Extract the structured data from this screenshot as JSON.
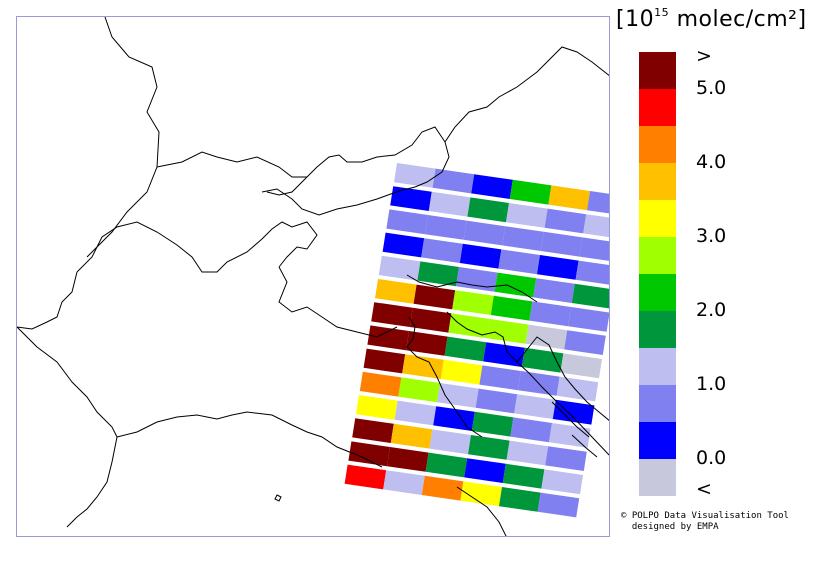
{
  "legend": {
    "unit_prefix": "[10",
    "unit_exponent": "15",
    "unit_suffix": " molec/cm²]",
    "colors": [
      "#800000",
      "#ff0000",
      "#ff8000",
      "#ffc000",
      "#ffff00",
      "#a0ff00",
      "#00c800",
      "#00963c",
      "#bebef0",
      "#8080f0",
      "#0000ff",
      "#c8c8dc"
    ],
    "labels": [
      {
        "text": ">",
        "slot": 0
      },
      {
        "text": "5.0",
        "slot": 1
      },
      {
        "text": "4.0",
        "slot": 3
      },
      {
        "text": "3.0",
        "slot": 5
      },
      {
        "text": "2.0",
        "slot": 7
      },
      {
        "text": "1.0",
        "slot": 9
      },
      {
        "text": "0.0",
        "slot": 11
      },
      {
        "text": "<",
        "slot": 12
      }
    ]
  },
  "swath": {
    "rows": [
      [
        "#bebef0",
        "#8080f0",
        "#0000ff",
        "#00c800",
        "#ffc000",
        "#8080f0"
      ],
      [
        "#0000ff",
        "#bebef0",
        "#00963c",
        "#bebef0",
        "#8080f0",
        "#bebef0"
      ],
      [
        "#8080f0",
        "#8080f0",
        "#8080f0",
        "#8080f0",
        "#8080f0",
        "#8080f0"
      ],
      [
        "#0000ff",
        "#8080f0",
        "#0000ff",
        "#8080f0",
        "#0000ff",
        "#8080f0"
      ],
      [
        "#bebef0",
        "#00963c",
        "#8080f0",
        "#00c800",
        "#8080f0",
        "#00963c"
      ],
      [
        "#ffc000",
        "#800000",
        "#a0ff00",
        "#00c800",
        "#8080f0",
        "#8080f0"
      ],
      [
        "#800000",
        "#800000",
        "#a0ff00",
        "#a0ff00",
        "#c8c8dc",
        "#8080f0"
      ],
      [
        "#800000",
        "#800000",
        "#00963c",
        "#0000ff",
        "#00963c",
        "#c8c8dc"
      ],
      [
        "#800000",
        "#ffc000",
        "#ffff00",
        "#8080f0",
        "#8080f0",
        "#bebef0"
      ],
      [
        "#ff8000",
        "#a0ff00",
        "#bebef0",
        "#8080f0",
        "#bebef0",
        "#0000ff"
      ],
      [
        "#ffff00",
        "#bebef0",
        "#0000ff",
        "#00963c",
        "#8080f0",
        "#bebef0"
      ],
      [
        "#800000",
        "#ffc000",
        "#bebef0",
        "#00963c",
        "#bebef0",
        "#8080f0"
      ],
      [
        "#800000",
        "#800000",
        "#00963c",
        "#0000ff",
        "#00963c",
        "#bebef0"
      ],
      [
        "#ff0000",
        "#bebef0",
        "#ff8000",
        "#ffff00",
        "#00963c",
        "#8080f0"
      ]
    ]
  },
  "credit": {
    "line1": "© POLPO Data Visualisation Tool",
    "line2": "  designed by EMPA"
  }
}
